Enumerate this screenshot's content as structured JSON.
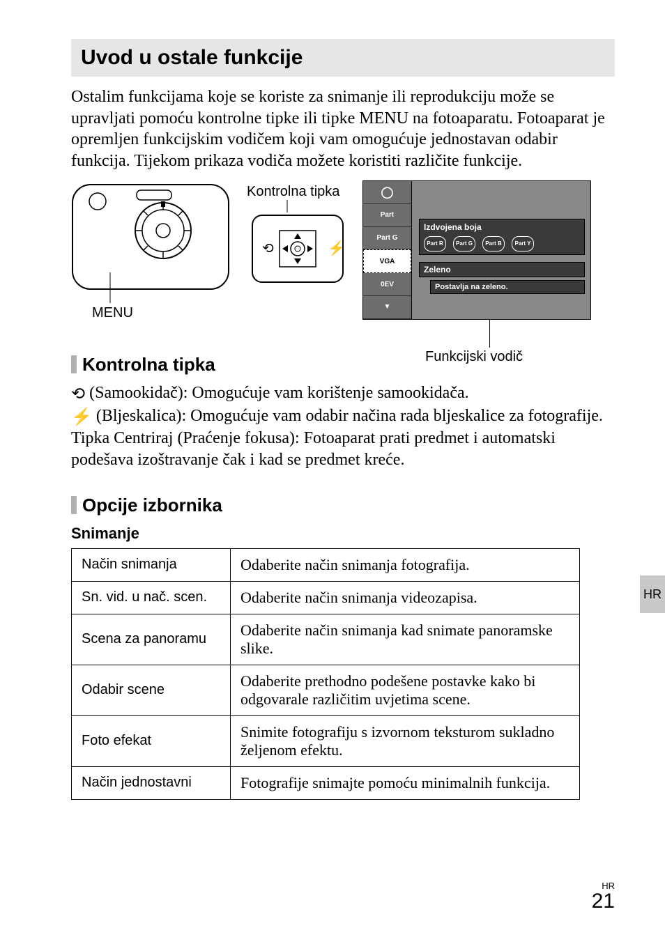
{
  "title": "Uvod u ostale funkcije",
  "intro": "Ostalim funkcijama koje se koriste za snimanje ili reprodukciju može se upravljati pomoću kontrolne tipke ili tipke MENU na fotoaparatu. Fotoaparat je opremljen funkcijskim vodičem koji vam omogućuje jednostavan odabir funkcija. Tijekom prikaza vodiča možete koristiti različite funkcije.",
  "fig": {
    "control_label": "Kontrolna tipka",
    "menu_label": "MENU",
    "guide_label": "Funkcijski vodič",
    "screen": {
      "side": [
        "",
        "Part",
        "Part G",
        "VGA",
        "0EV",
        "▼"
      ],
      "panel1_title": "Izdvojena boja",
      "panel1_pills": [
        "Part R",
        "Part G",
        "Part B",
        "Part Y"
      ],
      "panel2": "Zeleno",
      "panel3": "Postavlja na zeleno."
    }
  },
  "sec1": {
    "heading": "Kontrolna tipka",
    "line1_after": " (Samookidač): Omogućuje vam korištenje samookidača.",
    "line2_after": " (Bljeskalica): Omogućuje vam odabir načina rada bljeskalice za fotografije.",
    "line3": "Tipka Centriraj (Praćenje fokusa): Fotoaparat prati predmet i automatski podešava izoštravanje čak i kad se predmet kreće."
  },
  "sec2": {
    "heading": "Opcije izbornika",
    "subheading": "Snimanje",
    "rows": [
      {
        "k": "Način snimanja",
        "v": "Odaberite način snimanja fotografija."
      },
      {
        "k": "Sn. vid. u nač. scen.",
        "v": "Odaberite način snimanja videozapisa."
      },
      {
        "k": "Scena za panoramu",
        "v": "Odaberite način snimanja kad snimate panoramske slike."
      },
      {
        "k": "Odabir scene",
        "v": "Odaberite prethodno podešene postavke kako bi odgovarale različitim uvjetima scene."
      },
      {
        "k": "Foto efekat",
        "v": "Snimite fotografiju s izvornom teksturom sukladno željenom efektu."
      },
      {
        "k": "Način jednostavni",
        "v": "Fotografije snimajte pomoću minimalnih funkcija."
      }
    ]
  },
  "sidetab": "HR",
  "footer": {
    "lang": "HR",
    "page": "21"
  }
}
